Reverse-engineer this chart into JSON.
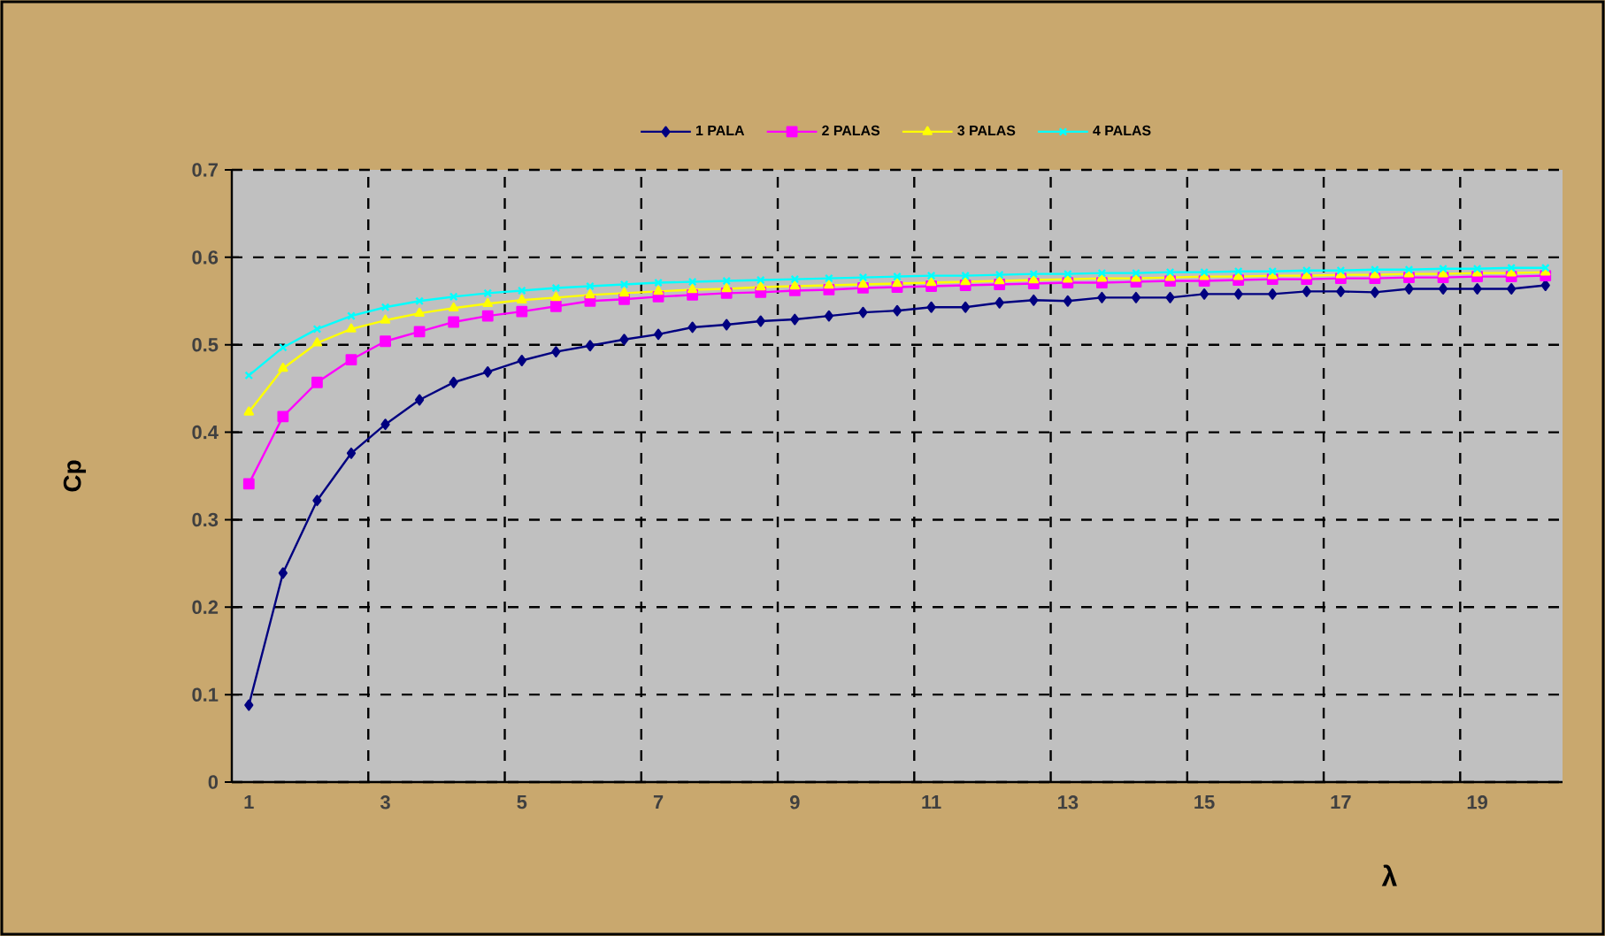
{
  "chart_data": {
    "type": "line",
    "xlabel": "λ",
    "ylabel": "Cp",
    "x": [
      1,
      1.5,
      2,
      2.5,
      3,
      3.5,
      4,
      4.5,
      5,
      5.5,
      6,
      6.5,
      7,
      7.5,
      8,
      8.5,
      9,
      9.5,
      10,
      10.5,
      11,
      11.5,
      12,
      12.5,
      13,
      13.5,
      14,
      14.5,
      15,
      15.5,
      16,
      16.5,
      17,
      17.5,
      18,
      18.5,
      19,
      19.5,
      20
    ],
    "series": [
      {
        "name": "1 PALA",
        "color": "#000080",
        "marker": "diamond",
        "values": [
          0.088,
          0.239,
          0.322,
          0.376,
          0.409,
          0.437,
          0.457,
          0.469,
          0.482,
          0.492,
          0.499,
          0.506,
          0.512,
          0.52,
          0.523,
          0.527,
          0.529,
          0.533,
          0.537,
          0.539,
          0.543,
          0.543,
          0.548,
          0.551,
          0.55,
          0.554,
          0.554,
          0.554,
          0.558,
          0.558,
          0.558,
          0.561,
          0.561,
          0.56,
          0.564,
          0.564,
          0.564,
          0.564,
          0.568
        ]
      },
      {
        "name": "2 PALAS",
        "color": "#ff00ff",
        "marker": "square",
        "values": [
          0.341,
          0.418,
          0.457,
          0.483,
          0.504,
          0.515,
          0.526,
          0.533,
          0.538,
          0.544,
          0.55,
          0.552,
          0.555,
          0.557,
          0.559,
          0.56,
          0.562,
          0.563,
          0.565,
          0.566,
          0.567,
          0.568,
          0.569,
          0.57,
          0.571,
          0.571,
          0.572,
          0.573,
          0.573,
          0.574,
          0.575,
          0.575,
          0.576,
          0.576,
          0.577,
          0.577,
          0.578,
          0.578,
          0.579
        ]
      },
      {
        "name": "3 PALAS",
        "color": "#ffff00",
        "marker": "triangle",
        "values": [
          0.423,
          0.473,
          0.502,
          0.518,
          0.528,
          0.536,
          0.542,
          0.547,
          0.551,
          0.554,
          0.557,
          0.559,
          0.561,
          0.563,
          0.564,
          0.566,
          0.567,
          0.568,
          0.569,
          0.57,
          0.571,
          0.572,
          0.573,
          0.574,
          0.575,
          0.576,
          0.576,
          0.577,
          0.578,
          0.578,
          0.579,
          0.579,
          0.58,
          0.58,
          0.581,
          0.581,
          0.582,
          0.582,
          0.583
        ]
      },
      {
        "name": "4 PALAS",
        "color": "#00ffff",
        "marker": "cross",
        "values": [
          0.465,
          0.497,
          0.518,
          0.533,
          0.543,
          0.55,
          0.555,
          0.559,
          0.562,
          0.565,
          0.567,
          0.569,
          0.571,
          0.572,
          0.573,
          0.574,
          0.575,
          0.576,
          0.577,
          0.578,
          0.579,
          0.579,
          0.58,
          0.581,
          0.581,
          0.582,
          0.582,
          0.583,
          0.583,
          0.584,
          0.584,
          0.585,
          0.585,
          0.586,
          0.586,
          0.587,
          0.587,
          0.588,
          0.588
        ]
      }
    ],
    "xlim": [
      0.75,
      20.25
    ],
    "xticks": [
      1,
      {
        "value": 2.75,
        "label": null
      },
      3,
      {
        "value": 4.75,
        "label": null
      },
      5,
      {
        "value": 6.75,
        "label": null
      },
      7,
      {
        "value": 8.75,
        "label": null
      },
      9,
      {
        "value": 10.75,
        "label": null
      },
      11,
      {
        "value": 12.75,
        "label": null
      },
      13,
      {
        "value": 14.75,
        "label": null
      },
      15,
      {
        "value": 16.75,
        "label": null
      },
      17,
      {
        "value": 18.75,
        "label": null
      },
      19
    ],
    "ylim": [
      0,
      0.7
    ],
    "yticks": [
      0,
      0.1,
      0.2,
      0.3,
      0.4,
      0.5,
      0.6,
      0.7
    ],
    "grid": true,
    "legend": "top",
    "line_style": "solid"
  }
}
